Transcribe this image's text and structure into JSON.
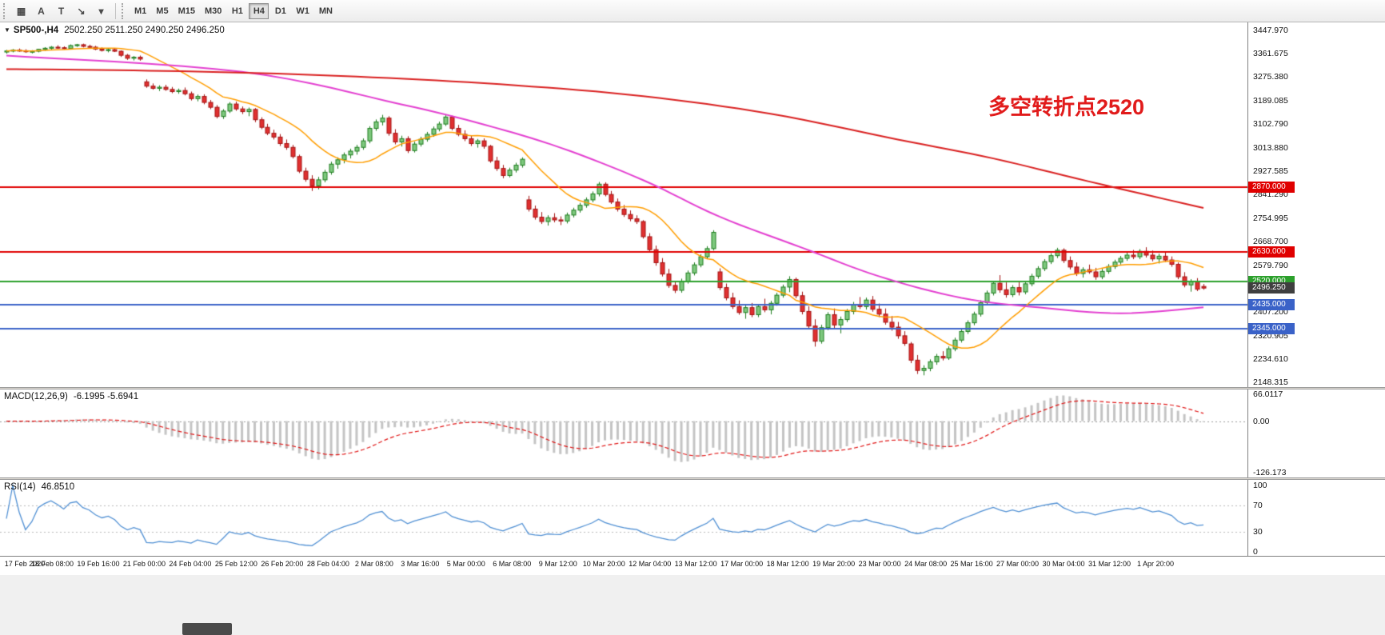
{
  "toolbar": {
    "tools": [
      {
        "name": "chart-grid-icon",
        "glyph": "▦"
      },
      {
        "name": "text-tool-icon",
        "glyph": "A"
      },
      {
        "name": "label-tool-icon",
        "glyph": "T"
      },
      {
        "name": "scale-tool-icon",
        "glyph": "↘"
      },
      {
        "name": "tools-dropdown-caret",
        "glyph": "▾"
      }
    ],
    "timeframes": [
      {
        "label": "M1"
      },
      {
        "label": "M5"
      },
      {
        "label": "M15"
      },
      {
        "label": "M30"
      },
      {
        "label": "H1"
      },
      {
        "label": "H4",
        "active": true
      },
      {
        "label": "D1"
      },
      {
        "label": "W1"
      },
      {
        "label": "MN"
      }
    ]
  },
  "chart": {
    "collapse_glyph": "▼",
    "symbol_header": "SP500-,H4",
    "ohlc_header": "2502.250 2511.250 2490.250 2496.250",
    "annotation": {
      "text": "多空转折点2520",
      "color": "#e11b1b"
    }
  },
  "macd": {
    "label": "MACD(12,26,9)",
    "values": "-6.1995 -5.6941",
    "axis_values": [
      66.0117,
      0,
      -126.173
    ],
    "axis_labels": [
      "66.0117",
      "0.00",
      "-126.173"
    ]
  },
  "rsi": {
    "label": "RSI(14)",
    "value": "46.8510",
    "axis_values": [
      100,
      70,
      30,
      0
    ],
    "levels": [
      70,
      30
    ]
  },
  "chart_data": {
    "type": "candlestick",
    "symbol": "SP500-",
    "timeframe": "H4",
    "y_range": [
      2148.315,
      3447.97
    ],
    "y_ticks": [
      3447.97,
      3361.675,
      3275.38,
      3189.085,
      3102.79,
      3013.88,
      2927.585,
      2841.29,
      2754.995,
      2668.7,
      2579.79,
      2407.2,
      2320.905,
      2234.61,
      2148.315
    ],
    "current": {
      "value": 2496.25,
      "label": "2496.250"
    },
    "hlines": [
      {
        "value": 2870,
        "label": "2870.000",
        "color": "#e00000"
      },
      {
        "value": 2630,
        "label": "2630.000",
        "color": "#e00000"
      },
      {
        "value": 2520,
        "label": "2520.000",
        "color": "#2ca02c"
      },
      {
        "value": 2435,
        "label": "2435.000",
        "color": "#3a62c8"
      },
      {
        "value": 2345,
        "label": "2345.000",
        "color": "#3a62c8"
      }
    ],
    "x_labels": [
      "17 Feb 2020",
      "18 Feb 08:00",
      "19 Feb 16:00",
      "21 Feb 00:00",
      "24 Feb 04:00",
      "25 Feb 12:00",
      "26 Feb 20:00",
      "28 Feb 04:00",
      "2 Mar 08:00",
      "3 Mar 16:00",
      "5 Mar 00:00",
      "6 Mar 08:00",
      "9 Mar 12:00",
      "10 Mar 20:00",
      "12 Mar 04:00",
      "13 Mar 12:00",
      "17 Mar 00:00",
      "18 Mar 12:00",
      "19 Mar 20:00",
      "23 Mar 00:00",
      "24 Mar 08:00",
      "25 Mar 16:00",
      "27 Mar 00:00",
      "30 Mar 04:00",
      "31 Mar 12:00",
      "1 Apr 20:00"
    ],
    "fast_ma_period": 13,
    "mid_ma_points": [
      [
        0,
        3355
      ],
      [
        37,
        3295
      ],
      [
        62,
        3175
      ],
      [
        75,
        3100
      ],
      [
        87,
        3015
      ],
      [
        100,
        2895
      ],
      [
        112,
        2760
      ],
      [
        125,
        2645
      ],
      [
        137,
        2540
      ],
      [
        150,
        2460
      ],
      [
        162,
        2425
      ],
      [
        175,
        2403
      ],
      [
        188,
        2425
      ]
    ],
    "slow_ma_points": [
      [
        0,
        3305
      ],
      [
        20,
        3300
      ],
      [
        40,
        3290
      ],
      [
        60,
        3272
      ],
      [
        80,
        3245
      ],
      [
        100,
        3205
      ],
      [
        120,
        3140
      ],
      [
        140,
        3045
      ],
      [
        155,
        2975
      ],
      [
        170,
        2890
      ],
      [
        188,
        2792
      ]
    ],
    "colors": {
      "up_fill": "#7ec87e",
      "up_border": "#1e7d1e",
      "down_fill": "#e03030",
      "down_border": "#a31313",
      "ma_fast": "#ff9d00",
      "ma_mid": "#e33fd0",
      "ma_slow": "#d92020",
      "macd_hist": "#c4c4c4",
      "macd_signal": "#e01515",
      "rsi_line": "#4f8fd3",
      "current_tag_bg": "#3f3f3f"
    },
    "candles": [
      [
        3368,
        3376,
        3362,
        3372
      ],
      [
        3372,
        3379,
        3367,
        3375
      ],
      [
        3375,
        3381,
        3369,
        3373
      ],
      [
        3373,
        3378,
        3365,
        3369
      ],
      [
        3369,
        3375,
        3363,
        3371
      ],
      [
        3371,
        3380,
        3367,
        3378
      ],
      [
        3378,
        3386,
        3373,
        3382
      ],
      [
        3382,
        3390,
        3377,
        3386
      ],
      [
        3386,
        3393,
        3380,
        3384
      ],
      [
        3384,
        3389,
        3377,
        3381
      ],
      [
        3381,
        3396,
        3378,
        3392
      ],
      [
        3392,
        3398,
        3387,
        3395
      ],
      [
        3395,
        3399,
        3385,
        3389
      ],
      [
        3389,
        3395,
        3382,
        3386
      ],
      [
        3386,
        3391,
        3375,
        3379
      ],
      [
        3379,
        3385,
        3370,
        3374
      ],
      [
        3374,
        3381,
        3367,
        3377
      ],
      [
        3377,
        3383,
        3368,
        3371
      ],
      [
        3371,
        3374,
        3350,
        3356
      ],
      [
        3356,
        3361,
        3339,
        3345
      ],
      [
        3345,
        3353,
        3337,
        3349
      ],
      [
        3349,
        3355,
        3336,
        3342
      ],
      [
        3258,
        3267,
        3236,
        3242
      ],
      [
        3242,
        3252,
        3229,
        3234
      ],
      [
        3234,
        3245,
        3224,
        3238
      ],
      [
        3238,
        3247,
        3225,
        3230
      ],
      [
        3230,
        3239,
        3216,
        3222
      ],
      [
        3222,
        3233,
        3214,
        3226
      ],
      [
        3226,
        3237,
        3208,
        3214
      ],
      [
        3214,
        3222,
        3189,
        3196
      ],
      [
        3196,
        3211,
        3186,
        3204
      ],
      [
        3204,
        3212,
        3175,
        3182
      ],
      [
        3182,
        3191,
        3157,
        3164
      ],
      [
        3164,
        3172,
        3123,
        3130
      ],
      [
        3130,
        3157,
        3121,
        3150
      ],
      [
        3150,
        3183,
        3143,
        3176
      ],
      [
        3176,
        3185,
        3151,
        3158
      ],
      [
        3158,
        3167,
        3139,
        3148
      ],
      [
        3148,
        3163,
        3131,
        3156
      ],
      [
        3156,
        3161,
        3109,
        3118
      ],
      [
        3118,
        3127,
        3083,
        3090
      ],
      [
        3090,
        3103,
        3061,
        3068
      ],
      [
        3068,
        3081,
        3045,
        3054
      ],
      [
        3054,
        3065,
        3021,
        3030
      ],
      [
        3030,
        3045,
        3007,
        3016
      ],
      [
        3016,
        3025,
        2975,
        2982
      ],
      [
        2982,
        2989,
        2921,
        2928
      ],
      [
        2928,
        2941,
        2889,
        2898
      ],
      [
        2898,
        2913,
        2855,
        2874
      ],
      [
        2874,
        2907,
        2861,
        2896
      ],
      [
        2896,
        2933,
        2887,
        2924
      ],
      [
        2924,
        2963,
        2915,
        2954
      ],
      [
        2954,
        2979,
        2937,
        2970
      ],
      [
        2970,
        2997,
        2957,
        2988
      ],
      [
        2988,
        3011,
        2975,
        3002
      ],
      [
        3002,
        3025,
        2989,
        3016
      ],
      [
        3016,
        3049,
        3007,
        3040
      ],
      [
        3040,
        3094,
        3031,
        3086
      ],
      [
        3086,
        3119,
        3077,
        3110
      ],
      [
        3110,
        3136,
        3097,
        3124
      ],
      [
        3124,
        3131,
        3059,
        3068
      ],
      [
        3068,
        3083,
        3027,
        3036
      ],
      [
        3036,
        3059,
        3019,
        3048
      ],
      [
        3048,
        3057,
        2995,
        3004
      ],
      [
        3004,
        3037,
        2997,
        3028
      ],
      [
        3028,
        3055,
        3019,
        3046
      ],
      [
        3046,
        3073,
        3037,
        3064
      ],
      [
        3064,
        3093,
        3055,
        3084
      ],
      [
        3084,
        3111,
        3075,
        3102
      ],
      [
        3102,
        3136,
        3095,
        3128
      ],
      [
        3128,
        3133,
        3079,
        3086
      ],
      [
        3086,
        3099,
        3057,
        3064
      ],
      [
        3064,
        3079,
        3039,
        3048
      ],
      [
        3048,
        3061,
        3021,
        3030
      ],
      [
        3030,
        3047,
        3015,
        3040
      ],
      [
        3040,
        3049,
        3011,
        3020
      ],
      [
        3020,
        3025,
        2959,
        2966
      ],
      [
        2966,
        2981,
        2929,
        2938
      ],
      [
        2938,
        2951,
        2902,
        2912
      ],
      [
        2912,
        2941,
        2905,
        2932
      ],
      [
        2932,
        2959,
        2923,
        2950
      ],
      [
        2950,
        2979,
        2941,
        2972
      ],
      [
        2822,
        2837,
        2779,
        2788
      ],
      [
        2788,
        2801,
        2749,
        2758
      ],
      [
        2758,
        2777,
        2733,
        2742
      ],
      [
        2742,
        2765,
        2727,
        2756
      ],
      [
        2756,
        2773,
        2739,
        2748
      ],
      [
        2748,
        2761,
        2729,
        2744
      ],
      [
        2744,
        2775,
        2735,
        2766
      ],
      [
        2766,
        2793,
        2757,
        2784
      ],
      [
        2784,
        2811,
        2775,
        2802
      ],
      [
        2802,
        2831,
        2793,
        2822
      ],
      [
        2822,
        2853,
        2813,
        2844
      ],
      [
        2844,
        2888,
        2835,
        2880
      ],
      [
        2880,
        2887,
        2835,
        2842
      ],
      [
        2842,
        2855,
        2807,
        2814
      ],
      [
        2814,
        2827,
        2779,
        2788
      ],
      [
        2788,
        2803,
        2759,
        2768
      ],
      [
        2768,
        2783,
        2743,
        2752
      ],
      [
        2752,
        2765,
        2733,
        2742
      ],
      [
        2742,
        2747,
        2679,
        2686
      ],
      [
        2686,
        2699,
        2629,
        2638
      ],
      [
        2638,
        2653,
        2579,
        2590
      ],
      [
        2590,
        2607,
        2539,
        2548
      ],
      [
        2548,
        2567,
        2497,
        2506
      ],
      [
        2506,
        2521,
        2478,
        2488
      ],
      [
        2488,
        2531,
        2479,
        2522
      ],
      [
        2522,
        2561,
        2513,
        2552
      ],
      [
        2552,
        2591,
        2543,
        2582
      ],
      [
        2582,
        2621,
        2573,
        2612
      ],
      [
        2612,
        2651,
        2603,
        2642
      ],
      [
        2642,
        2710,
        2635,
        2702
      ],
      [
        2556,
        2569,
        2489,
        2498
      ],
      [
        2498,
        2513,
        2451,
        2460
      ],
      [
        2460,
        2479,
        2419,
        2428
      ],
      [
        2428,
        2451,
        2398,
        2406
      ],
      [
        2406,
        2433,
        2383,
        2424
      ],
      [
        2424,
        2441,
        2389,
        2398
      ],
      [
        2398,
        2437,
        2389,
        2428
      ],
      [
        2428,
        2457,
        2407,
        2416
      ],
      [
        2416,
        2449,
        2399,
        2440
      ],
      [
        2440,
        2479,
        2431,
        2470
      ],
      [
        2470,
        2509,
        2461,
        2500
      ],
      [
        2500,
        2540,
        2481,
        2528
      ],
      [
        2528,
        2535,
        2459,
        2468
      ],
      [
        2468,
        2483,
        2399,
        2410
      ],
      [
        2410,
        2429,
        2347,
        2356
      ],
      [
        2356,
        2381,
        2280,
        2300
      ],
      [
        2300,
        2361,
        2291,
        2350
      ],
      [
        2350,
        2407,
        2341,
        2398
      ],
      [
        2398,
        2421,
        2349,
        2360
      ],
      [
        2360,
        2391,
        2329,
        2380
      ],
      [
        2380,
        2419,
        2371,
        2410
      ],
      [
        2410,
        2445,
        2399,
        2436
      ],
      [
        2436,
        2463,
        2419,
        2428
      ],
      [
        2428,
        2461,
        2417,
        2452
      ],
      [
        2452,
        2467,
        2409,
        2418
      ],
      [
        2418,
        2439,
        2389,
        2400
      ],
      [
        2400,
        2421,
        2361,
        2370
      ],
      [
        2370,
        2393,
        2339,
        2352
      ],
      [
        2352,
        2371,
        2309,
        2320
      ],
      [
        2320,
        2337,
        2283,
        2292
      ],
      [
        2290,
        2297,
        2219,
        2230
      ],
      [
        2230,
        2249,
        2179,
        2192
      ],
      [
        2192,
        2211,
        2174,
        2200
      ],
      [
        2200,
        2233,
        2189,
        2224
      ],
      [
        2224,
        2253,
        2213,
        2244
      ],
      [
        2244,
        2263,
        2229,
        2238
      ],
      [
        2238,
        2281,
        2231,
        2272
      ],
      [
        2272,
        2313,
        2263,
        2304
      ],
      [
        2304,
        2345,
        2295,
        2336
      ],
      [
        2336,
        2377,
        2327,
        2368
      ],
      [
        2368,
        2409,
        2359,
        2400
      ],
      [
        2400,
        2451,
        2391,
        2442
      ],
      [
        2442,
        2487,
        2433,
        2478
      ],
      [
        2478,
        2523,
        2469,
        2514
      ],
      [
        2514,
        2544,
        2479,
        2490
      ],
      [
        2490,
        2517,
        2461,
        2472
      ],
      [
        2472,
        2507,
        2463,
        2498
      ],
      [
        2498,
        2521,
        2469,
        2482
      ],
      [
        2482,
        2521,
        2473,
        2512
      ],
      [
        2512,
        2549,
        2503,
        2540
      ],
      [
        2540,
        2577,
        2531,
        2568
      ],
      [
        2568,
        2603,
        2559,
        2594
      ],
      [
        2594,
        2625,
        2585,
        2616
      ],
      [
        2616,
        2645,
        2607,
        2636
      ],
      [
        2636,
        2643,
        2589,
        2598
      ],
      [
        2598,
        2613,
        2565,
        2574
      ],
      [
        2574,
        2591,
        2541,
        2550
      ],
      [
        2550,
        2573,
        2535,
        2564
      ],
      [
        2564,
        2583,
        2549,
        2556
      ],
      [
        2556,
        2571,
        2527,
        2538
      ],
      [
        2538,
        2567,
        2529,
        2558
      ],
      [
        2558,
        2585,
        2549,
        2576
      ],
      [
        2576,
        2601,
        2567,
        2592
      ],
      [
        2592,
        2615,
        2583,
        2606
      ],
      [
        2606,
        2627,
        2597,
        2618
      ],
      [
        2618,
        2637,
        2603,
        2612
      ],
      [
        2612,
        2640,
        2603,
        2632
      ],
      [
        2632,
        2647,
        2609,
        2618
      ],
      [
        2618,
        2635,
        2595,
        2604
      ],
      [
        2604,
        2623,
        2587,
        2614
      ],
      [
        2614,
        2629,
        2593,
        2600
      ],
      [
        2600,
        2613,
        2575,
        2584
      ],
      [
        2584,
        2591,
        2529,
        2538
      ],
      [
        2538,
        2555,
        2499,
        2508
      ],
      [
        2508,
        2529,
        2483,
        2520
      ],
      [
        2520,
        2533,
        2485,
        2492
      ],
      [
        2502.25,
        2511.25,
        2490.25,
        2496.25
      ]
    ]
  }
}
